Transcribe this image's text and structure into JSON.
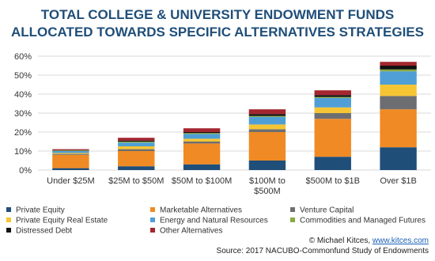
{
  "chart_data": {
    "type": "stacked_bar",
    "title": [
      "TOTAL COLLEGE & UNIVERSITY ENDOWMENT FUNDS",
      "ALLOCATED TOWARDS SPECIFIC ALTERNATIVES STRATEGIES"
    ],
    "categories": [
      "Under $25M",
      "$25M to $50M",
      "$50M to $100M",
      "$100M to $500M",
      "$500M to $1B",
      "Over $1B"
    ],
    "series": [
      {
        "name": "Private Equity",
        "color": "#1f4e79",
        "values": [
          1,
          2,
          3,
          5,
          7,
          12
        ]
      },
      {
        "name": "Marketable Alternatives",
        "color": "#f08a24",
        "values": [
          7,
          8,
          11,
          15,
          20,
          20
        ]
      },
      {
        "name": "Venture Capital",
        "color": "#6d6e71",
        "values": [
          0.5,
          1,
          1,
          1.5,
          3,
          7
        ]
      },
      {
        "name": "Private Equity Real Estate",
        "color": "#f6c533",
        "values": [
          0.5,
          1.5,
          1.5,
          2.5,
          3,
          6
        ]
      },
      {
        "name": "Energy and Natural Resources",
        "color": "#4f9fd6",
        "values": [
          1,
          2,
          2.5,
          4,
          5,
          7
        ]
      },
      {
        "name": "Commodities and Managed Futures",
        "color": "#8aab3f",
        "values": [
          0.3,
          0.5,
          0.5,
          0.5,
          0.5,
          1
        ]
      },
      {
        "name": "Distressed Debt",
        "color": "#111111",
        "values": [
          0.2,
          0.5,
          0.5,
          1,
          1,
          2
        ]
      },
      {
        "name": "Other Alternatives",
        "color": "#a3262f",
        "values": [
          0.5,
          1.5,
          2,
          2.5,
          2.5,
          2
        ]
      }
    ],
    "ylim": [
      0,
      60
    ],
    "yticks": [
      {
        "value": 0,
        "label": "0%"
      },
      {
        "value": 10,
        "label": "10%"
      },
      {
        "value": 20,
        "label": "20%"
      },
      {
        "value": 30,
        "label": "30%"
      },
      {
        "value": 40,
        "label": "40%"
      },
      {
        "value": 50,
        "label": "50%"
      },
      {
        "value": 60,
        "label": "60%"
      }
    ],
    "grid": true,
    "credit_prefix": "© Michael Kitces, ",
    "credit_link": "www.kitces.com",
    "source": "Source: 2017 NACUBO-Commonfund Study of Endowments"
  }
}
